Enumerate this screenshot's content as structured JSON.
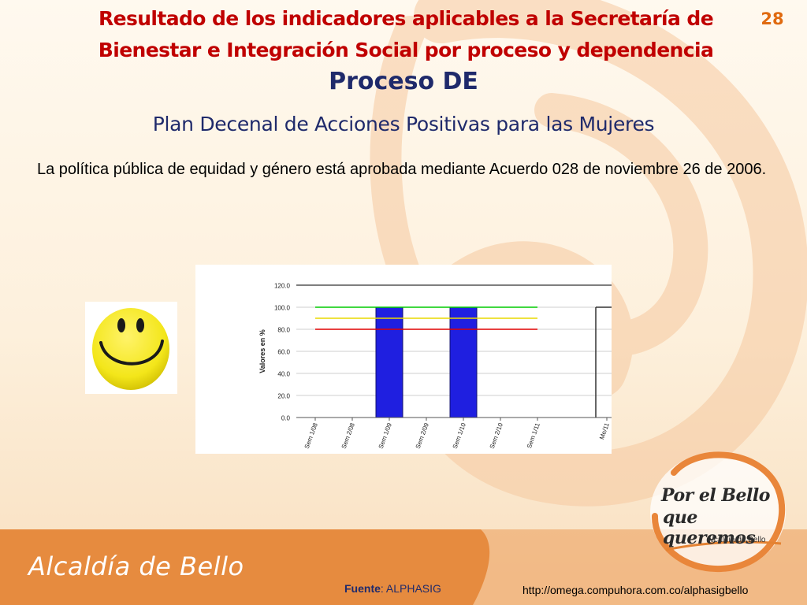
{
  "slide": {
    "title": "Resultado de los indicadores aplicables a la Secretaría de Bienestar e Integración Social  por proceso y dependencia",
    "page_number": "28",
    "process_title": "Proceso DE",
    "plan_title": "Plan Decenal de Acciones Positivas para las Mujeres",
    "description": "La política pública de equidad y género está aprobada mediante Acuerdo 028 de noviembre 26 de 2006."
  },
  "footer": {
    "brand": "Alcaldía de Bello",
    "source_label": "Fuente",
    "source_value": ": ALPHASIG",
    "url": "http://omega.compuhora.com.co/alphasigbello"
  },
  "logo": {
    "line1": "Por el Bello",
    "line2": "que queremos",
    "subtitle": "Alcaldía de Bello"
  },
  "icons": {
    "smiley": "smiley-face-icon"
  },
  "colors": {
    "title_red": "#c00000",
    "navy": "#1f2a6b",
    "accent_orange": "#e06a10",
    "bar_blue": "#1f1fe0",
    "target_green": "#00cc00",
    "target_yellow": "#e8d800",
    "target_red": "#e00000",
    "smiley_yellow": "#f3e61a"
  },
  "chart_data": {
    "type": "bar",
    "categories": [
      "Sem 1/08",
      "Sem 2/08",
      "Sem 1/09",
      "Sem 2/09",
      "Sem 1/10",
      "Sem 2/10",
      "Sem 1/11",
      "Me/11"
    ],
    "values": [
      null,
      null,
      100,
      null,
      100,
      null,
      null,
      null
    ],
    "ylabel": "Valores en %",
    "ylim": [
      0,
      120
    ],
    "yticks": [
      "0.0",
      "20.0",
      "40.0",
      "60.0",
      "80.0",
      "100.0",
      "120.0"
    ],
    "reference_lines": [
      {
        "value": 100,
        "color": "#00cc00"
      },
      {
        "value": 90,
        "color": "#e8d800"
      },
      {
        "value": 80,
        "color": "#e00000"
      }
    ],
    "grid": true
  }
}
